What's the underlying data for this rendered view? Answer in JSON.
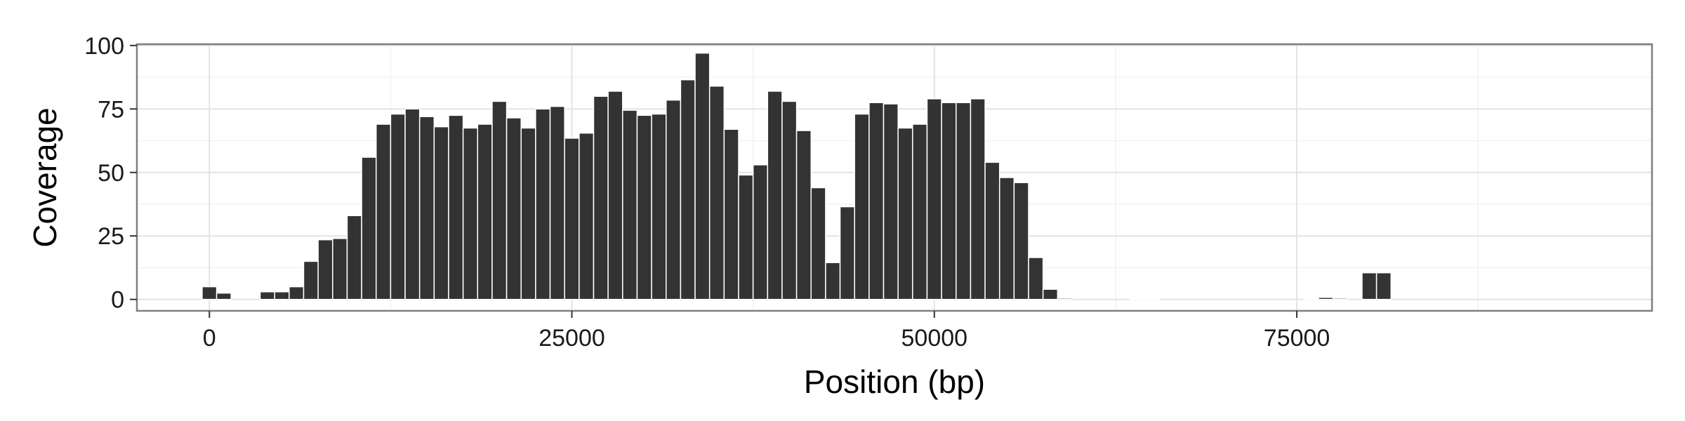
{
  "chart_data": {
    "type": "bar",
    "title": "",
    "xlabel": "Position (bp)",
    "ylabel": "Coverage",
    "xlim": [
      -5000,
      99500
    ],
    "ylim": [
      -4.5,
      100.5
    ],
    "grid": true,
    "bin_width": 1000,
    "x_ticks": [
      0,
      25000,
      50000,
      75000
    ],
    "x_tick_labels": [
      "0",
      "25000",
      "50000",
      "75000"
    ],
    "y_ticks": [
      0,
      25,
      50,
      75,
      100
    ],
    "y_tick_labels": [
      "0",
      "25",
      "50",
      "75",
      "100"
    ],
    "x": [
      0,
      1000,
      2000,
      3000,
      4000,
      5000,
      6000,
      7000,
      8000,
      9000,
      10000,
      11000,
      12000,
      13000,
      14000,
      15000,
      16000,
      17000,
      18000,
      19000,
      20000,
      21000,
      22000,
      23000,
      24000,
      25000,
      26000,
      27000,
      28000,
      29000,
      30000,
      31000,
      32000,
      33000,
      34000,
      35000,
      36000,
      37000,
      38000,
      39000,
      40000,
      41000,
      42000,
      43000,
      44000,
      45000,
      46000,
      47000,
      48000,
      49000,
      50000,
      51000,
      52000,
      53000,
      54000,
      55000,
      56000,
      57000,
      58000,
      59000,
      60000,
      61000,
      62000,
      63000,
      64000,
      65000,
      66000,
      67000,
      68000,
      69000,
      70000,
      71000,
      72000,
      73000,
      74000,
      75000,
      76000,
      77000,
      78000,
      79000,
      80000,
      81000,
      82000,
      83000,
      84000,
      85000,
      86000,
      87000,
      88000,
      89000,
      90000,
      91000,
      92000,
      93000,
      94000
    ],
    "values": [
      5,
      2.5,
      0,
      0,
      3,
      3,
      5,
      15,
      23.5,
      24,
      33,
      56,
      69,
      73,
      75,
      72,
      68,
      72.5,
      67.5,
      69,
      78,
      71.5,
      67.5,
      75,
      76,
      63.5,
      65.5,
      80,
      82,
      74.5,
      72.5,
      73,
      78.5,
      86.5,
      97,
      84,
      67,
      49,
      53,
      82,
      78,
      66.5,
      44,
      14.5,
      36.5,
      73,
      77.5,
      77,
      67.5,
      69,
      79,
      77.5,
      77.5,
      79,
      54,
      48,
      46,
      16.5,
      4,
      0.5,
      0,
      0,
      0,
      0,
      0.3,
      0.3,
      0,
      0,
      0,
      0,
      0,
      0,
      0,
      0,
      0,
      0,
      0.4,
      0.8,
      0.5,
      0,
      10.5,
      10.5,
      0,
      0,
      0,
      0,
      0,
      0,
      0,
      0,
      0,
      0,
      0,
      0,
      0
    ]
  }
}
